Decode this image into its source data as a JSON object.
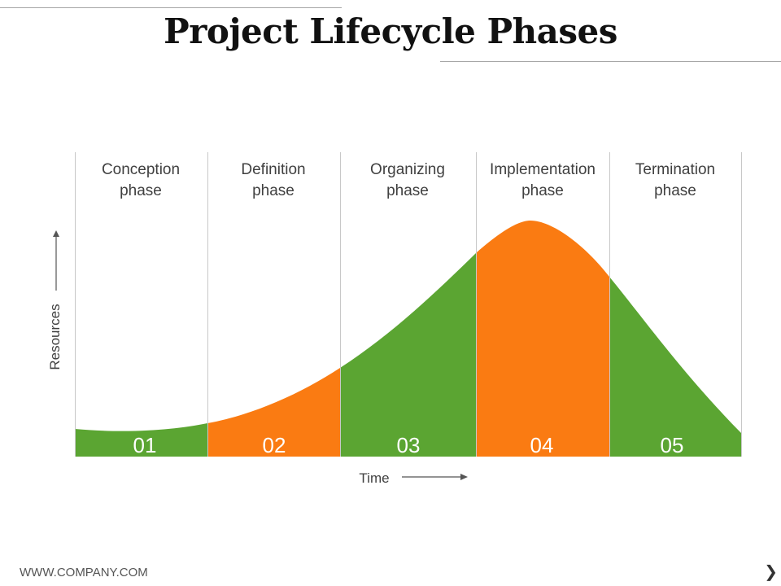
{
  "title": "Project Lifecycle Phases",
  "axes": {
    "y_label": "Resources",
    "x_label": "Time"
  },
  "phases": [
    {
      "number": "01",
      "line1": "Conception",
      "line2": "phase",
      "color": "#5ba532"
    },
    {
      "number": "02",
      "line1": "Definition",
      "line2": "phase",
      "color": "#fa7b12"
    },
    {
      "number": "03",
      "line1": "Organizing",
      "line2": "phase",
      "color": "#5ba532"
    },
    {
      "number": "04",
      "line1": "Implementation",
      "line2": "phase",
      "color": "#fa7b12"
    },
    {
      "number": "05",
      "line1": "Termination",
      "line2": "phase",
      "color": "#5ba532"
    }
  ],
  "footer": {
    "website": "WWW.COMPANY.COM",
    "next_icon": "chevron-right-icon"
  },
  "colors": {
    "green": "#5ba532",
    "orange": "#fa7b12",
    "divider": "#c8c8c8",
    "text": "#404040"
  }
}
